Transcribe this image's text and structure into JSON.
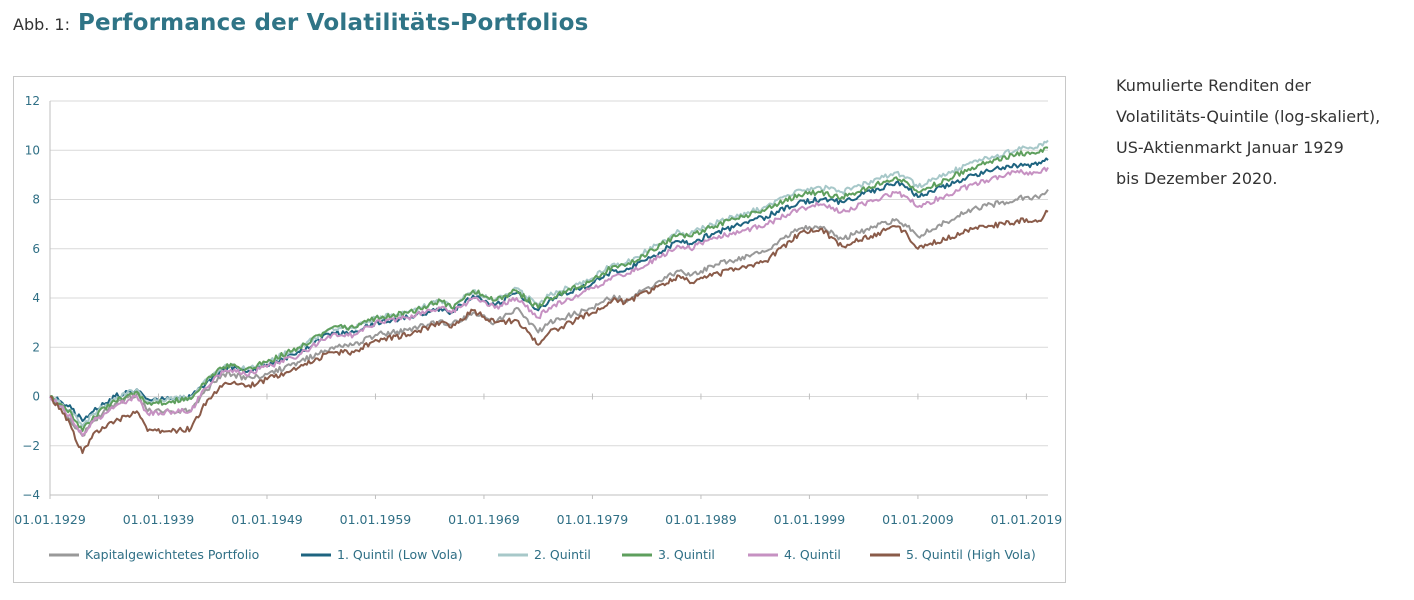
{
  "header": {
    "prefix": "Abb. 1:",
    "title": "Performance der Volatilitäts-Portfolios"
  },
  "note": {
    "lines": [
      "Kumulierte Renditen der",
      "Volatilitäts-Quintile (log-skaliert),",
      "US-Aktienmarkt Januar 1929",
      "bis Dezember 2020."
    ]
  },
  "chart_data": {
    "type": "line",
    "title": "",
    "xlabel": "",
    "ylabel": "",
    "ylim": [
      -4,
      12
    ],
    "yticks": [
      -4,
      -2,
      0,
      2,
      4,
      6,
      8,
      10,
      12
    ],
    "yticklabels": [
      "−4",
      "−2",
      "0",
      "2",
      "4",
      "6",
      "8",
      "10",
      "12"
    ],
    "xlim": [
      1929,
      2020.99
    ],
    "xticks": [
      1929,
      1939,
      1949,
      1959,
      1969,
      1979,
      1989,
      1999,
      2009,
      2019
    ],
    "xticklabels": [
      "01.01.1929",
      "01.01.1939",
      "01.01.1949",
      "01.01.1959",
      "01.01.1969",
      "01.01.1979",
      "01.01.1989",
      "01.01.1999",
      "01.01.2009",
      "01.01.2019"
    ],
    "grid": true,
    "legend": "bottom",
    "x": [
      1929,
      1930,
      1931,
      1932,
      1933,
      1935,
      1937,
      1938,
      1940,
      1942,
      1943,
      1945,
      1946,
      1947,
      1949,
      1952,
      1955,
      1957,
      1959,
      1962,
      1965,
      1966,
      1968,
      1970,
      1972,
      1974,
      1975,
      1979,
      1981,
      1982,
      1987,
      1988,
      1990,
      1995,
      1998,
      2000,
      2002,
      2007,
      2008,
      2009,
      2014,
      2018,
      2019,
      2020,
      2020.99
    ],
    "series": [
      {
        "name": "Kapitalgewichtetes Portfolio",
        "color": "#999999",
        "values": [
          0,
          -0.4,
          -1.1,
          -1.6,
          -1.0,
          -0.3,
          0.1,
          -0.6,
          -0.6,
          -0.6,
          0.1,
          0.9,
          0.9,
          0.7,
          0.9,
          1.4,
          2.0,
          2.1,
          2.5,
          2.7,
          3.1,
          2.9,
          3.4,
          3.0,
          3.6,
          2.6,
          3.0,
          3.6,
          4.1,
          3.9,
          5.1,
          4.9,
          5.3,
          5.9,
          6.8,
          6.9,
          6.4,
          7.2,
          6.9,
          6.5,
          7.6,
          8.0,
          8.1,
          8.1,
          8.4
        ]
      },
      {
        "name": "1. Quintil (Low Vola)",
        "color": "#1e6480",
        "values": [
          0,
          -0.2,
          -0.5,
          -1.0,
          -0.6,
          0.0,
          0.3,
          -0.1,
          -0.1,
          0.0,
          0.4,
          1.1,
          1.2,
          1.0,
          1.3,
          1.8,
          2.6,
          2.6,
          3.0,
          3.2,
          3.6,
          3.4,
          4.1,
          3.7,
          4.2,
          3.5,
          3.9,
          4.6,
          5.1,
          5.1,
          6.3,
          6.2,
          6.6,
          7.3,
          7.9,
          8.0,
          7.9,
          8.7,
          8.5,
          8.1,
          9.0,
          9.4,
          9.4,
          9.4,
          9.6
        ]
      },
      {
        "name": "2. Quintil",
        "color": "#a7c8c9",
        "values": [
          0,
          -0.3,
          -0.6,
          -1.2,
          -0.7,
          -0.1,
          0.3,
          -0.2,
          -0.1,
          0.0,
          0.5,
          1.2,
          1.3,
          1.1,
          1.4,
          2.0,
          2.8,
          2.8,
          3.2,
          3.4,
          3.9,
          3.6,
          4.3,
          3.9,
          4.4,
          3.7,
          4.1,
          4.8,
          5.4,
          5.4,
          6.7,
          6.6,
          7.0,
          7.7,
          8.4,
          8.5,
          8.3,
          9.1,
          8.9,
          8.5,
          9.5,
          10.0,
          10.1,
          10.1,
          10.4
        ]
      },
      {
        "name": "3. Quintil",
        "color": "#5e9f5d",
        "values": [
          0,
          -0.3,
          -0.7,
          -1.4,
          -0.8,
          -0.2,
          0.2,
          -0.3,
          -0.2,
          -0.1,
          0.5,
          1.2,
          1.3,
          1.1,
          1.4,
          2.0,
          2.8,
          2.8,
          3.2,
          3.4,
          3.9,
          3.6,
          4.3,
          3.9,
          4.3,
          3.6,
          4.0,
          4.7,
          5.3,
          5.3,
          6.6,
          6.5,
          6.9,
          7.6,
          8.2,
          8.3,
          8.1,
          8.9,
          8.7,
          8.3,
          9.3,
          9.8,
          9.9,
          9.9,
          10.1
        ]
      },
      {
        "name": "4. Quintil",
        "color": "#c691c2",
        "values": [
          0,
          -0.4,
          -0.9,
          -1.6,
          -1.0,
          -0.4,
          0.0,
          -0.7,
          -0.6,
          -0.6,
          0.2,
          1.0,
          1.1,
          0.9,
          1.2,
          1.7,
          2.5,
          2.5,
          3.0,
          3.2,
          3.6,
          3.4,
          4.0,
          3.6,
          4.0,
          3.2,
          3.6,
          4.4,
          4.9,
          4.9,
          6.1,
          6.0,
          6.4,
          7.0,
          7.6,
          7.8,
          7.5,
          8.3,
          8.1,
          7.7,
          8.6,
          9.1,
          9.1,
          9.1,
          9.3
        ]
      },
      {
        "name": "5. Quintil (High Vola)",
        "color": "#8a5b49",
        "values": [
          0,
          -0.5,
          -1.3,
          -2.3,
          -1.5,
          -1.0,
          -0.6,
          -1.4,
          -1.4,
          -1.3,
          -0.5,
          0.5,
          0.6,
          0.4,
          0.7,
          1.2,
          1.8,
          1.8,
          2.3,
          2.5,
          3.0,
          2.8,
          3.5,
          3.0,
          3.1,
          2.1,
          2.6,
          3.4,
          4.0,
          3.8,
          4.9,
          4.6,
          4.9,
          5.5,
          6.6,
          6.8,
          6.1,
          6.9,
          6.6,
          6.0,
          6.8,
          7.1,
          7.2,
          7.1,
          7.5
        ]
      }
    ]
  }
}
